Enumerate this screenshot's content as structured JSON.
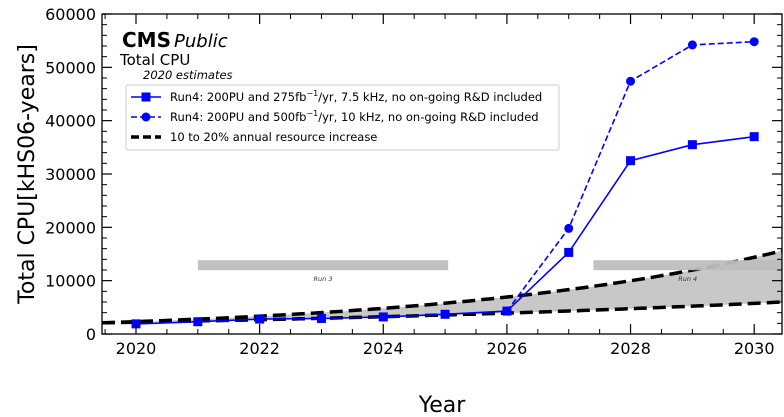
{
  "chart_data": {
    "type": "line",
    "xlabel": "Year",
    "ylabel": "Total CPU[kHS06-years]",
    "xlim": [
      2019.45,
      2030.45
    ],
    "ylim": [
      0,
      60000
    ],
    "x_ticks": [
      2020,
      2022,
      2024,
      2026,
      2028,
      2030
    ],
    "y_ticks": [
      0,
      10000,
      20000,
      30000,
      40000,
      50000,
      60000
    ],
    "header": {
      "brand": "CMS",
      "brand_sub": "Public",
      "title": "Total CPU",
      "subtitle": "2020 estimates"
    },
    "legend_position": "upper-left",
    "series": [
      {
        "name": "Run4: 200PU and 275fb⁻¹/yr, 7.5 kHz, no on-going R&D included",
        "legend_label": [
          "Run4: 200PU and 275fb",
          "−1",
          "/yr, 7.5 kHz, no on-going R&D included"
        ],
        "color": "#0000ff",
        "style": "solid",
        "marker": "square",
        "x": [
          2020,
          2021,
          2022,
          2023,
          2024,
          2025,
          2026,
          2027,
          2028,
          2029,
          2030
        ],
        "y": [
          1900,
          2300,
          2800,
          2900,
          3200,
          3700,
          4300,
          15300,
          32500,
          35500,
          37000
        ]
      },
      {
        "name": "Run4: 200PU and 500fb⁻¹/yr, 10 kHz, no on-going R&D included",
        "legend_label": [
          "Run4: 200PU and 500fb",
          "−1",
          "/yr, 10 kHz, no on-going R&D included"
        ],
        "color": "#0000ff",
        "style": "dashed",
        "marker": "circle",
        "x": [
          2026,
          2027,
          2028,
          2029,
          2030
        ],
        "y": [
          4300,
          19800,
          47400,
          54200,
          54800
        ]
      }
    ],
    "resource_band": {
      "name": "10 to 20% annual resource increase",
      "color": "#000000",
      "fill": "#c8c8c8",
      "base_year": 2019.45,
      "base_value": 2100,
      "low_rate": 0.1,
      "high_rate": 0.2
    },
    "run_periods": [
      {
        "label": "Run 3",
        "x_start": 2021.0,
        "x_end": 2025.05,
        "y": 12900,
        "color": "#bebebe"
      },
      {
        "label": "Run 4",
        "x_start": 2027.4,
        "x_end": 2030.45,
        "y": 12900,
        "color": "#bebebe"
      }
    ]
  }
}
